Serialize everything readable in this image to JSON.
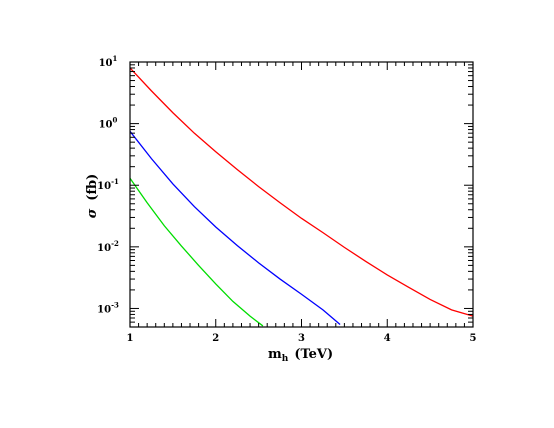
{
  "chart_data": {
    "type": "line",
    "xlabel_main": "m",
    "xlabel_sub": "h",
    "xlabel_unit": "(TeV)",
    "ylabel_symbol": "σ",
    "ylabel_unit": "(fb)",
    "xlim": [
      1,
      5
    ],
    "ylim": [
      0.0005,
      10
    ],
    "yscale": "log",
    "x_ticks": [
      {
        "value": 1,
        "label": "1"
      },
      {
        "value": 2,
        "label": "2"
      },
      {
        "value": 3,
        "label": "3"
      },
      {
        "value": 4,
        "label": "4"
      },
      {
        "value": 5,
        "label": "5"
      }
    ],
    "y_ticks": [
      {
        "value": 10,
        "base": "10",
        "exp": "1"
      },
      {
        "value": 1,
        "base": "10",
        "exp": "0"
      },
      {
        "value": 0.1,
        "base": "10",
        "exp": "-1"
      },
      {
        "value": 0.01,
        "base": "10",
        "exp": "-2"
      },
      {
        "value": 0.001,
        "base": "10",
        "exp": "-3"
      }
    ],
    "grid": false,
    "series": [
      {
        "color": "#ff0000",
        "x": [
          1.0,
          1.25,
          1.5,
          1.75,
          2.0,
          2.25,
          2.5,
          2.75,
          3.0,
          3.25,
          3.5,
          3.75,
          4.0,
          4.25,
          4.5,
          4.75,
          5.0
        ],
        "y": [
          8.0,
          3.4,
          1.5,
          0.7,
          0.35,
          0.18,
          0.095,
          0.052,
          0.029,
          0.017,
          0.0098,
          0.0058,
          0.0035,
          0.0022,
          0.0014,
          0.00095,
          0.00075
        ]
      },
      {
        "color": "#0000ff",
        "x": [
          1.0,
          1.25,
          1.5,
          1.75,
          2.0,
          2.25,
          2.5,
          2.75,
          3.0,
          3.25,
          3.45
        ],
        "y": [
          0.75,
          0.27,
          0.105,
          0.045,
          0.021,
          0.0105,
          0.0055,
          0.003,
          0.0017,
          0.00095,
          0.00055
        ]
      },
      {
        "color": "#00dd00",
        "x": [
          1.0,
          1.2,
          1.4,
          1.6,
          1.8,
          2.0,
          2.2,
          2.4,
          2.55
        ],
        "y": [
          0.13,
          0.052,
          0.022,
          0.0103,
          0.005,
          0.0025,
          0.0013,
          0.00075,
          0.00052
        ]
      }
    ]
  }
}
